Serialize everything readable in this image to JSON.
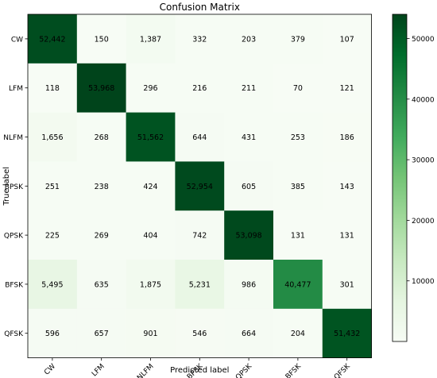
{
  "chart_data": {
    "type": "heatmap",
    "title": "Confusion Matrix",
    "xlabel": "Predicted label",
    "ylabel": "True label",
    "x_categories": [
      "CW",
      "LFM",
      "NLFM",
      "BPSK",
      "QPSK",
      "BFSK",
      "QFSK"
    ],
    "y_categories": [
      "CW",
      "LFM",
      "NLFM",
      "BPSK",
      "QPSK",
      "BFSK",
      "QFSK"
    ],
    "values": [
      [
        52442,
        150,
        1387,
        332,
        203,
        379,
        107
      ],
      [
        118,
        53968,
        296,
        216,
        211,
        70,
        121
      ],
      [
        1656,
        268,
        51562,
        644,
        431,
        253,
        186
      ],
      [
        251,
        238,
        424,
        52954,
        605,
        385,
        143
      ],
      [
        225,
        269,
        404,
        742,
        53098,
        131,
        131
      ],
      [
        5495,
        635,
        1875,
        5231,
        986,
        40477,
        301
      ],
      [
        596,
        657,
        901,
        546,
        664,
        204,
        51432
      ]
    ],
    "color_range": [
      0,
      54000
    ],
    "colorbar_ticks": [
      10000,
      20000,
      30000,
      40000,
      50000
    ],
    "colormap": "Greens",
    "colormap_colors": [
      "#f7fcf5",
      "#e5f5e0",
      "#c7e9c0",
      "#a1d99b",
      "#74c476",
      "#41ab5d",
      "#238b45",
      "#006d2c",
      "#00441b"
    ],
    "text_color_dark": "#000000",
    "text_color_light": "#ffffff"
  }
}
